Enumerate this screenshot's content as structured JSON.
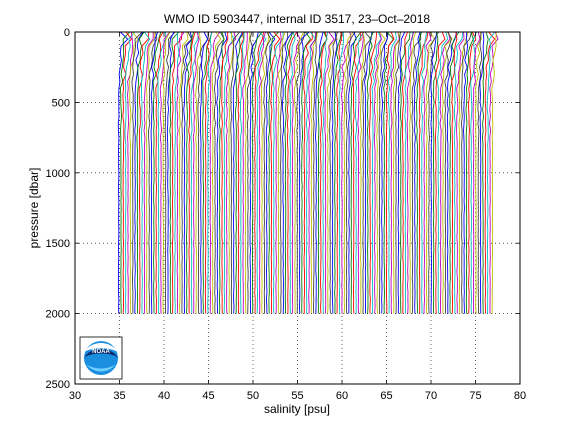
{
  "chart_data": {
    "type": "line",
    "title": "WMO ID 5903447, internal ID 3517, 23–Oct–2018",
    "xlabel": "salinity [psu]",
    "ylabel": "pressure [dbar]",
    "xlim": [
      30,
      80
    ],
    "ylim": [
      0,
      2500
    ],
    "y_reversed": true,
    "grid": true,
    "x_ticks": [
      30,
      35,
      40,
      45,
      50,
      55,
      60,
      65,
      70,
      75,
      80
    ],
    "y_ticks": [
      0,
      500,
      1000,
      1500,
      2000,
      2500
    ],
    "offset_profiles": {
      "first_profile_deep_salinity": 34.9,
      "last_profile_deep_salinity": 76.9,
      "profile_count": 160,
      "max_pressure": 2000
    },
    "colors": [
      "#0000ff",
      "#008000",
      "#ff0000",
      "#00bfbf",
      "#bf00bf",
      "#bfbf00",
      "#404040"
    ],
    "logo": {
      "text": "NOAA",
      "name": "noaa-logo"
    }
  }
}
